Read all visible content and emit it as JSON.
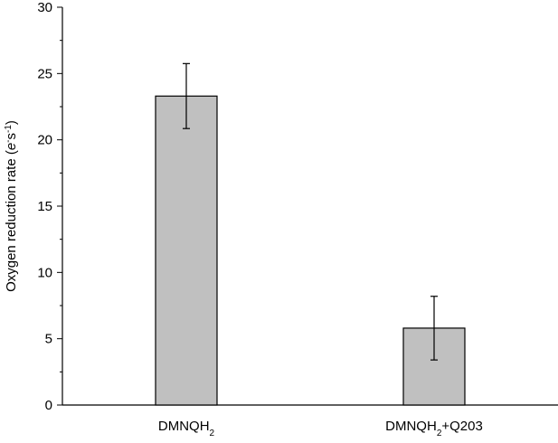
{
  "chart_data": {
    "type": "bar",
    "categories": [
      "DMNQH2",
      "DMNQH2+Q203"
    ],
    "category_labels": [
      {
        "base": "DMNQH",
        "sub": "2",
        "suffix": ""
      },
      {
        "base": "DMNQH",
        "sub": "2",
        "suffix": "+Q203"
      }
    ],
    "values": [
      23.3,
      5.8
    ],
    "errors": [
      2.45,
      2.4
    ],
    "ylim": [
      0,
      30
    ],
    "yticks": [
      0,
      5,
      10,
      15,
      20,
      25,
      30
    ],
    "ylabel": {
      "prefix": "Oxygen reduction rate (",
      "italic": "e",
      "sup1": "-",
      "middle": "s",
      "sup2": "-1",
      "suffix": ")"
    },
    "xlabel": "",
    "title": "",
    "grid": false,
    "legend": "none",
    "colors": {
      "bar_fill": "#c0c0c0",
      "bar_stroke": "#000000",
      "axis": "#000000",
      "error_bar": "#000000"
    }
  }
}
